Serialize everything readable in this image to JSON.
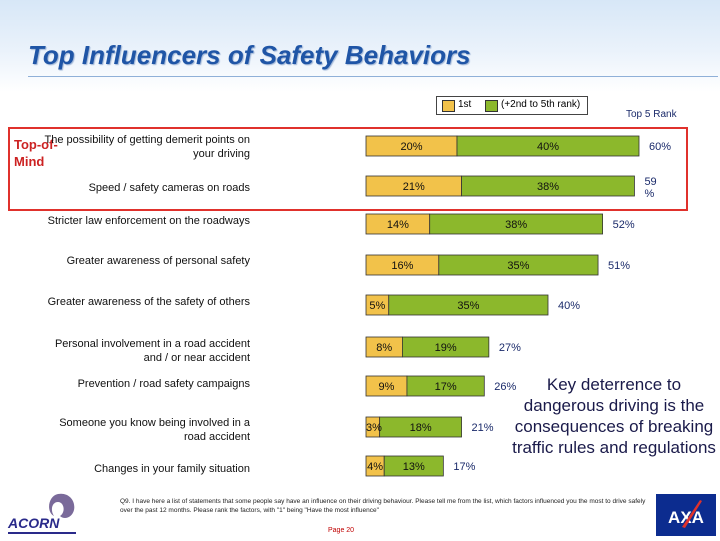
{
  "title": "Top Influencers of Safety Behaviors",
  "legend": {
    "first_label": "1st",
    "rest_label": "(+2nd to 5th rank)"
  },
  "top5_label": "Top 5 Rank",
  "top_of_mind_label": "Top-of-Mind",
  "note": "Key deterrence to dangerous driving is the consequences of breaking traffic rules and regulations",
  "question": "Q9. I have here a list of statements that some people say have an influence on their driving behaviour. Please tell me from the list, which factors influenced you the most to drive safely over the past 12 months. Please rank the factors, with \"1\" being \"Have the most influence\"",
  "page": "Page 20",
  "logos": {
    "acorn": "ACORN",
    "axa": "AXA"
  },
  "colors": {
    "first": "#f2c24a",
    "rest": "#8cb82c",
    "highlight": "#e0312c",
    "title": "#1f55a6"
  },
  "chart_data": {
    "type": "bar",
    "orientation": "horizontal",
    "stacked": true,
    "title": "",
    "categories": [
      "The possibility of getting demerit points on your driving",
      "Speed / safety cameras on roads",
      "Stricter law enforcement on the roadways",
      "Greater awareness of personal safety",
      "Greater awareness of the safety of others",
      "Personal involvement in a road accident and / or near accident",
      "Prevention / road safety campaigns",
      "Someone you know being involved in a road accident",
      "Changes in your family situation"
    ],
    "series": [
      {
        "name": "1st",
        "values": [
          20,
          21,
          14,
          16,
          5,
          8,
          9,
          3,
          4
        ],
        "labels": [
          "20%",
          "21%",
          "14%",
          "16%",
          "5%",
          "8%",
          "9%",
          "3%",
          "4%"
        ]
      },
      {
        "name": "(+2nd to 5th rank)",
        "values": [
          40,
          38,
          38,
          35,
          35,
          19,
          17,
          18,
          13
        ],
        "labels": [
          "40%",
          "38%",
          "38%",
          "35%",
          "35%",
          "19%",
          "17%",
          "18%",
          "13%"
        ]
      }
    ],
    "totals": [
      60,
      59,
      52,
      51,
      40,
      27,
      26,
      21,
      17
    ],
    "total_labels": [
      "60%",
      "59 %",
      "52%",
      "51%",
      "40%",
      "27%",
      "26%",
      "21%",
      "17%"
    ],
    "xlim": [
      0,
      65
    ],
    "xlabel": "",
    "ylabel": ""
  }
}
